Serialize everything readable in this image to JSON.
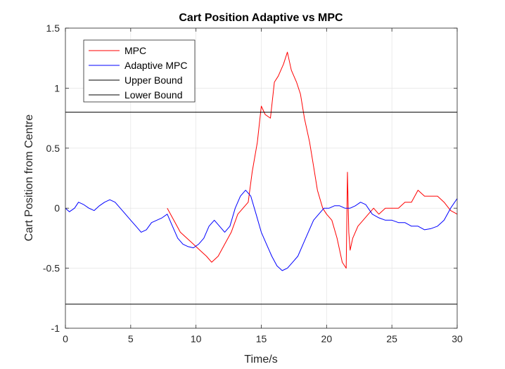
{
  "chart_data": {
    "type": "line",
    "title": "Cart Position Adaptive vs MPC",
    "xlabel": "Time/s",
    "ylabel": "Cart Position from Centre",
    "xlim": [
      0,
      30
    ],
    "ylim": [
      -1,
      1.5
    ],
    "xticks": [
      0,
      5,
      10,
      15,
      20,
      25,
      30
    ],
    "yticks": [
      -1,
      -0.5,
      0,
      0.5,
      1,
      1.5
    ],
    "xtick_labels": [
      "0",
      "5",
      "10",
      "15",
      "20",
      "25",
      "30"
    ],
    "ytick_labels": [
      "-1",
      "-0.5",
      "0",
      "0.5",
      "1",
      "1.5"
    ],
    "grid": true,
    "legend_position": "top-left",
    "series": [
      {
        "name": "MPC",
        "color": "#ff0000",
        "x": [
          7.8,
          8.3,
          8.8,
          9.3,
          9.8,
          10.3,
          10.8,
          11.2,
          11.7,
          12.2,
          12.7,
          13.2,
          13.6,
          14.0,
          14.3,
          14.7,
          15.0,
          15.3,
          15.7,
          16.0,
          16.3,
          16.7,
          17.0,
          17.3,
          17.7,
          18.0,
          18.3,
          18.7,
          19.0,
          19.3,
          19.7,
          20.0,
          20.4,
          20.8,
          21.2,
          21.5,
          21.6,
          21.7,
          21.8,
          22.0,
          22.4,
          22.8,
          23.2,
          23.6,
          24.0,
          24.5,
          25.0,
          25.5,
          26.0,
          26.5,
          27.0,
          27.5,
          28.0,
          28.5,
          29.0,
          29.5,
          30.0
        ],
        "y": [
          0.0,
          -0.1,
          -0.2,
          -0.25,
          -0.3,
          -0.35,
          -0.4,
          -0.45,
          -0.4,
          -0.3,
          -0.2,
          -0.05,
          0.0,
          0.05,
          0.3,
          0.55,
          0.85,
          0.78,
          0.75,
          1.05,
          1.1,
          1.2,
          1.3,
          1.15,
          1.05,
          0.95,
          0.75,
          0.55,
          0.35,
          0.15,
          0.0,
          -0.05,
          -0.1,
          -0.25,
          -0.45,
          -0.5,
          0.3,
          -0.2,
          -0.35,
          -0.25,
          -0.15,
          -0.1,
          -0.05,
          0.0,
          -0.05,
          0.0,
          0.0,
          0.0,
          0.05,
          0.05,
          0.15,
          0.1,
          0.1,
          0.1,
          0.05,
          -0.02,
          -0.05
        ]
      },
      {
        "name": "Adaptive MPC",
        "color": "#0000ff",
        "x": [
          0.0,
          0.3,
          0.7,
          1.0,
          1.4,
          1.8,
          2.2,
          2.6,
          3.0,
          3.4,
          3.8,
          4.2,
          4.6,
          5.0,
          5.4,
          5.8,
          6.2,
          6.6,
          7.0,
          7.4,
          7.8,
          8.2,
          8.6,
          9.0,
          9.4,
          9.8,
          10.2,
          10.6,
          11.0,
          11.4,
          11.8,
          12.2,
          12.6,
          13.0,
          13.4,
          13.8,
          14.2,
          14.6,
          15.0,
          15.4,
          15.8,
          16.2,
          16.6,
          17.0,
          17.4,
          17.8,
          18.2,
          18.6,
          19.0,
          19.4,
          19.8,
          20.2,
          20.6,
          21.0,
          21.4,
          21.8,
          22.2,
          22.6,
          23.0,
          23.5,
          24.0,
          24.5,
          25.0,
          25.5,
          26.0,
          26.5,
          27.0,
          27.5,
          28.0,
          28.5,
          29.0,
          29.5,
          30.0
        ],
        "y": [
          0.0,
          -0.03,
          0.0,
          0.05,
          0.03,
          0.0,
          -0.02,
          0.02,
          0.05,
          0.07,
          0.05,
          0.0,
          -0.05,
          -0.1,
          -0.15,
          -0.2,
          -0.18,
          -0.12,
          -0.1,
          -0.08,
          -0.05,
          -0.15,
          -0.25,
          -0.3,
          -0.32,
          -0.33,
          -0.3,
          -0.25,
          -0.15,
          -0.1,
          -0.15,
          -0.2,
          -0.15,
          0.0,
          0.1,
          0.15,
          0.1,
          -0.05,
          -0.2,
          -0.3,
          -0.4,
          -0.48,
          -0.52,
          -0.5,
          -0.45,
          -0.4,
          -0.3,
          -0.2,
          -0.1,
          -0.05,
          0.0,
          0.0,
          0.02,
          0.02,
          0.0,
          0.0,
          0.02,
          0.05,
          0.03,
          -0.05,
          -0.08,
          -0.1,
          -0.1,
          -0.12,
          -0.12,
          -0.15,
          -0.15,
          -0.18,
          -0.17,
          -0.15,
          -0.1,
          0.0,
          0.08
        ]
      },
      {
        "name": "Upper Bound",
        "color": "#000000",
        "x": [
          0,
          30
        ],
        "y": [
          0.8,
          0.8
        ]
      },
      {
        "name": "Lower Bound",
        "color": "#000000",
        "x": [
          0,
          30
        ],
        "y": [
          -0.8,
          -0.8
        ]
      }
    ]
  }
}
